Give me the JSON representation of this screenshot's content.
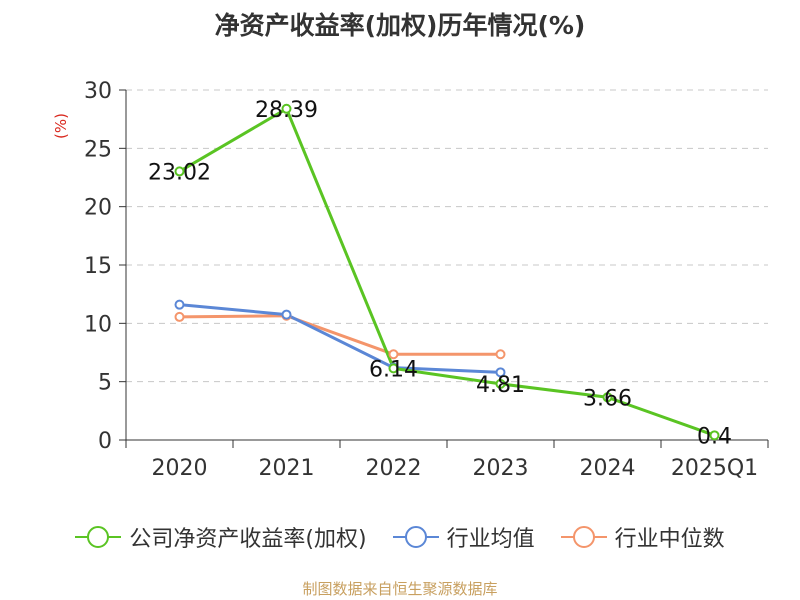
{
  "chart_data": {
    "type": "line",
    "title": "净资产收益率(加权)历年情况(%)",
    "ylabel": "(%)",
    "categories": [
      "2020",
      "2021",
      "2022",
      "2023",
      "2024",
      "2025Q1"
    ],
    "ylim": [
      0,
      30
    ],
    "yticks": [
      "0",
      "5",
      "10",
      "15",
      "20",
      "25",
      "30"
    ],
    "grid": true,
    "legend_position": "bottom",
    "series": [
      {
        "name": "公司净资产收益率(加权)",
        "color": "#5ac423",
        "values": [
          23.02,
          28.39,
          6.14,
          4.81,
          3.66,
          0.4
        ],
        "labels": [
          "23.02",
          "28.39",
          "6.14",
          "4.81",
          "3.66",
          "0.4"
        ]
      },
      {
        "name": "行业均值",
        "color": "#5b87d6",
        "values": [
          11.6,
          10.75,
          6.2,
          5.8,
          null,
          null
        ]
      },
      {
        "name": "行业中位数",
        "color": "#f4956b",
        "values": [
          10.55,
          10.65,
          7.35,
          7.35,
          null,
          null
        ]
      }
    ]
  },
  "source": "制图数据来自恒生聚源数据库"
}
